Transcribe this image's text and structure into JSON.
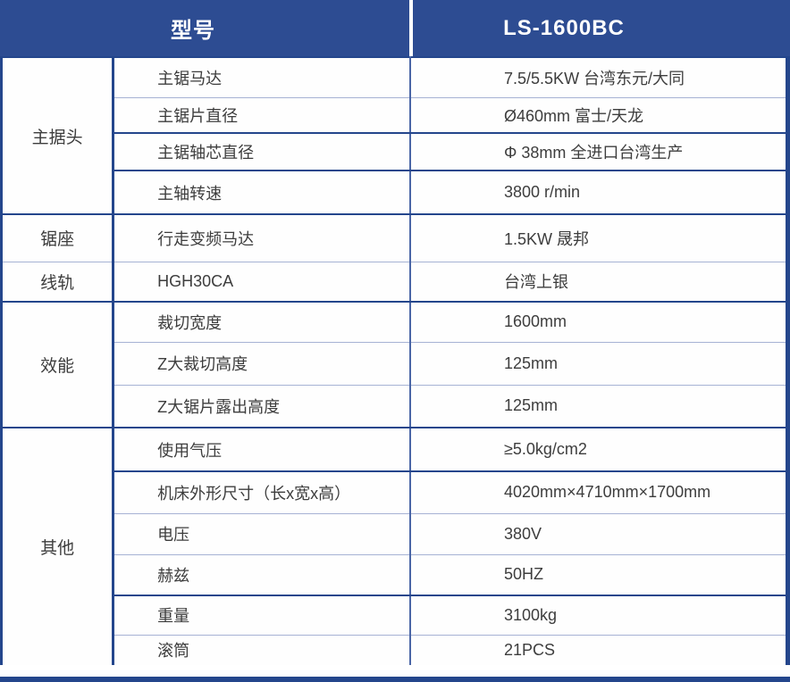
{
  "colors": {
    "header_bg": "#2d4c92",
    "dark_border": "#24468c",
    "mid_border": "#4a66a6",
    "light_border": "#a6b2d4",
    "text": "#3d3d3d",
    "header_text": "#ffffff"
  },
  "header": {
    "model_label": "型号",
    "model_value": "LS-1600BC"
  },
  "table": {
    "groups": [
      {
        "category": "主据头",
        "sep": "thick",
        "rows": [
          {
            "label": "主锯马达",
            "value": "7.5/5.5KW 台湾东元/大同",
            "sep": "thin"
          },
          {
            "label": "主锯片直径",
            "value": "Ø460mm 富士/天龙",
            "sep": "thick"
          },
          {
            "label": "主锯轴芯直径",
            "value": "Φ 38mm 全进口台湾生产",
            "sep": "thick"
          },
          {
            "label": "主轴转速",
            "value": "3800 r/min",
            "sep": "thick"
          }
        ]
      },
      {
        "category": "锯座",
        "sep": "thin",
        "rows": [
          {
            "label": "行走变频马达",
            "value": "1.5KW 晟邦",
            "sep": "thin"
          }
        ]
      },
      {
        "category": "线轨",
        "sep": "thick",
        "rows": [
          {
            "label": "HGH30CA",
            "value": "台湾上银",
            "sep": "thick"
          }
        ]
      },
      {
        "category": "效能",
        "sep": "thick",
        "rows": [
          {
            "label": "裁切宽度",
            "value": "1600mm",
            "sep": "thin"
          },
          {
            "label": "Z大裁切高度",
            "value": "125mm",
            "sep": "thin"
          },
          {
            "label": "Z大锯片露出高度",
            "value": "125mm",
            "sep": "thick"
          }
        ]
      },
      {
        "category": "其他",
        "sep": "none",
        "rows": [
          {
            "label": "使用气压",
            "value": "≥5.0kg/cm2",
            "sep": "thick"
          },
          {
            "label": "机床外形尺寸（长x宽x高）",
            "value": "4020mm×4710mm×1700mm",
            "sep": "thin"
          },
          {
            "label": "电压",
            "value": "380V",
            "sep": "thin"
          },
          {
            "label": "赫兹",
            "value": "50HZ",
            "sep": "thick"
          },
          {
            "label": "重量",
            "value": "3100kg",
            "sep": "thin"
          },
          {
            "label": "滚筒",
            "value": "21PCS",
            "sep": "none"
          }
        ]
      }
    ]
  }
}
